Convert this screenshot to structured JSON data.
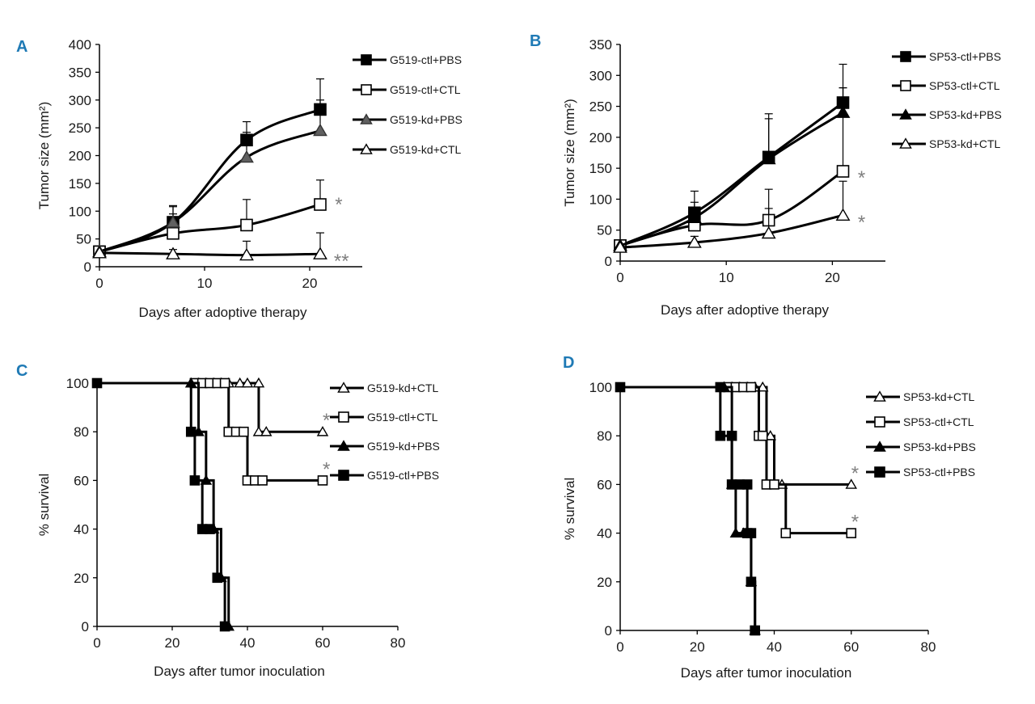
{
  "figure": {
    "panels": [
      "A",
      "B",
      "C",
      "D"
    ]
  },
  "chart_data": [
    {
      "id": "A",
      "panel_label": "A",
      "type": "line",
      "xlabel": "Days after adoptive therapy",
      "ylabel": "Tumor size (mm²)",
      "xlim": [
        0,
        25
      ],
      "ylim": [
        0,
        400
      ],
      "xticks": [
        0,
        10,
        20
      ],
      "yticks": [
        0,
        50,
        100,
        150,
        200,
        250,
        300,
        350,
        400
      ],
      "legend_position": "top-right",
      "series": [
        {
          "name": "G519-ctl+PBS",
          "marker": "square-filled",
          "color": "#000000",
          "x": [
            0,
            7,
            14,
            21
          ],
          "values": [
            27,
            80,
            228,
            283
          ],
          "error": [
            0,
            30,
            33,
            55
          ]
        },
        {
          "name": "G519-ctl+CTL",
          "marker": "square-open",
          "color": "#000000",
          "x": [
            0,
            7,
            14,
            21
          ],
          "values": [
            27,
            60,
            75,
            112
          ],
          "error": [
            0,
            35,
            46,
            44
          ]
        },
        {
          "name": "G519-kd+PBS",
          "marker": "triangle-gray",
          "color": "#555555",
          "x": [
            0,
            7,
            14,
            21
          ],
          "values": [
            27,
            80,
            197,
            245
          ],
          "error": [
            0,
            28,
            45,
            55
          ]
        },
        {
          "name": "G519-kd+CTL",
          "marker": "triangle-open",
          "color": "#000000",
          "x": [
            0,
            7,
            14,
            21
          ],
          "values": [
            25,
            23,
            21,
            23
          ],
          "error": [
            0,
            8,
            25,
            38
          ]
        }
      ],
      "annotations": [
        {
          "text": "*",
          "x": 22.4,
          "y": 118
        },
        {
          "text": "**",
          "x": 22.3,
          "y": 16
        }
      ]
    },
    {
      "id": "B",
      "panel_label": "B",
      "type": "line",
      "xlabel": "Days after adoptive therapy",
      "ylabel": "Tumor size (mm²)",
      "xlim": [
        0,
        25
      ],
      "ylim": [
        0,
        350
      ],
      "xticks": [
        0,
        10,
        20
      ],
      "yticks": [
        0,
        50,
        100,
        150,
        200,
        250,
        300,
        350
      ],
      "legend_position": "top-right",
      "series": [
        {
          "name": "SP53-ctl+PBS",
          "marker": "square-filled",
          "color": "#000000",
          "x": [
            0,
            7,
            14,
            21
          ],
          "values": [
            25,
            78,
            168,
            256
          ],
          "error": [
            0,
            35,
            70,
            62
          ]
        },
        {
          "name": "SP53-ctl+CTL",
          "marker": "square-open",
          "color": "#000000",
          "x": [
            0,
            7,
            14,
            21
          ],
          "values": [
            25,
            58,
            66,
            145
          ],
          "error": [
            0,
            20,
            50,
            135
          ]
        },
        {
          "name": "SP53-kd+PBS",
          "marker": "triangle-filled",
          "color": "#000000",
          "x": [
            0,
            7,
            14,
            21
          ],
          "values": [
            25,
            70,
            165,
            240
          ],
          "error": [
            0,
            25,
            65,
            40
          ]
        },
        {
          "name": "SP53-kd+CTL",
          "marker": "triangle-open",
          "color": "#000000",
          "x": [
            0,
            7,
            14,
            21
          ],
          "values": [
            22,
            30,
            45,
            74
          ],
          "error": [
            0,
            10,
            40,
            55
          ]
        }
      ],
      "annotations": [
        {
          "text": "*",
          "x": 22.4,
          "y": 140
        },
        {
          "text": "*",
          "x": 22.4,
          "y": 68
        }
      ]
    },
    {
      "id": "C",
      "panel_label": "C",
      "type": "line",
      "step": true,
      "xlabel": "Days after tumor inoculation",
      "ylabel": "% survival",
      "xlim": [
        0,
        80
      ],
      "ylim": [
        0,
        100
      ],
      "xticks": [
        0,
        20,
        40,
        60,
        80
      ],
      "yticks": [
        0,
        20,
        40,
        60,
        80,
        100
      ],
      "legend_position": "top-right",
      "series": [
        {
          "name": "G519-kd+CTL",
          "marker": "triangle-open",
          "x": [
            0,
            43,
            60
          ],
          "values": [
            100,
            80,
            80
          ],
          "markers": [
            [
              25,
              100
            ],
            [
              27,
              100
            ],
            [
              29,
              100
            ],
            [
              31,
              100
            ],
            [
              33,
              100
            ],
            [
              35,
              100
            ],
            [
              38,
              100
            ],
            [
              40,
              100
            ],
            [
              43,
              100
            ],
            [
              43,
              80
            ],
            [
              45,
              80
            ],
            [
              60,
              80
            ]
          ]
        },
        {
          "name": "G519-ctl+CTL",
          "marker": "square-open",
          "x": [
            0,
            35,
            40,
            60
          ],
          "values": [
            100,
            80,
            60,
            60
          ],
          "markers": [
            [
              26,
              100
            ],
            [
              28,
              100
            ],
            [
              30,
              100
            ],
            [
              32,
              100
            ],
            [
              34,
              100
            ],
            [
              35,
              80
            ],
            [
              37,
              80
            ],
            [
              39,
              80
            ],
            [
              40,
              60
            ],
            [
              42,
              60
            ],
            [
              44,
              60
            ],
            [
              60,
              60
            ]
          ]
        },
        {
          "name": "G519-kd+PBS",
          "marker": "triangle-filled",
          "x": [
            0,
            27,
            29,
            31,
            33,
            35
          ],
          "values": [
            100,
            80,
            60,
            40,
            20,
            0
          ],
          "markers": [
            [
              25,
              100
            ],
            [
              27,
              80
            ],
            [
              29,
              60
            ],
            [
              31,
              40
            ],
            [
              33,
              20
            ],
            [
              35,
              0
            ]
          ]
        },
        {
          "name": "G519-ctl+PBS",
          "marker": "square-filled",
          "x": [
            0,
            25,
            26,
            28,
            30,
            32,
            34
          ],
          "values": [
            100,
            80,
            60,
            40,
            40,
            20,
            0
          ],
          "markers": [
            [
              0,
              100
            ],
            [
              25,
              80
            ],
            [
              26,
              60
            ],
            [
              28,
              40
            ],
            [
              30,
              40
            ],
            [
              32,
              20
            ],
            [
              34,
              0
            ]
          ]
        }
      ],
      "annotations": [
        {
          "text": "*",
          "x": 60,
          "y": 86
        },
        {
          "text": "*",
          "x": 60,
          "y": 66
        }
      ]
    },
    {
      "id": "D",
      "panel_label": "D",
      "type": "line",
      "step": true,
      "xlabel": "Days after tumor inoculation",
      "ylabel": "% survival",
      "xlim": [
        0,
        80
      ],
      "ylim": [
        0,
        100
      ],
      "xticks": [
        0,
        20,
        40,
        60,
        80
      ],
      "yticks": [
        0,
        20,
        40,
        60,
        80,
        100
      ],
      "legend_position": "top-right",
      "series": [
        {
          "name": "SP53-kd+CTL",
          "marker": "triangle-open",
          "x": [
            0,
            38,
            40,
            60
          ],
          "values": [
            100,
            80,
            60,
            60
          ],
          "markers": [
            [
              27,
              100
            ],
            [
              29,
              100
            ],
            [
              31,
              100
            ],
            [
              33,
              100
            ],
            [
              35,
              100
            ],
            [
              37,
              100
            ],
            [
              38,
              80
            ],
            [
              39,
              80
            ],
            [
              40,
              60
            ],
            [
              42,
              60
            ],
            [
              60,
              60
            ]
          ]
        },
        {
          "name": "SP53-ctl+CTL",
          "marker": "square-open",
          "x": [
            0,
            36,
            38,
            43,
            60
          ],
          "values": [
            100,
            80,
            60,
            40,
            40
          ],
          "markers": [
            [
              28,
              100
            ],
            [
              30,
              100
            ],
            [
              32,
              100
            ],
            [
              34,
              100
            ],
            [
              36,
              80
            ],
            [
              37,
              80
            ],
            [
              38,
              60
            ],
            [
              40,
              60
            ],
            [
              43,
              40
            ],
            [
              60,
              40
            ]
          ]
        },
        {
          "name": "SP53-kd+PBS",
          "marker": "triangle-filled",
          "x": [
            0,
            29,
            30,
            32,
            34,
            35
          ],
          "values": [
            100,
            60,
            40,
            40,
            20,
            0
          ],
          "markers": [
            [
              27,
              100
            ],
            [
              29,
              60
            ],
            [
              30,
              40
            ],
            [
              32,
              40
            ],
            [
              34,
              20
            ],
            [
              35,
              0
            ]
          ]
        },
        {
          "name": "SP53-ctl+PBS",
          "marker": "square-filled",
          "x": [
            0,
            26,
            29,
            31,
            33,
            34,
            35
          ],
          "values": [
            100,
            80,
            60,
            60,
            40,
            20,
            0
          ],
          "markers": [
            [
              0,
              100
            ],
            [
              26,
              100
            ],
            [
              26,
              80
            ],
            [
              29,
              80
            ],
            [
              29,
              60
            ],
            [
              31,
              60
            ],
            [
              33,
              60
            ],
            [
              33,
              40
            ],
            [
              34,
              40
            ],
            [
              34,
              20
            ],
            [
              35,
              0
            ]
          ]
        }
      ],
      "annotations": [
        {
          "text": "*",
          "x": 60,
          "y": 66
        },
        {
          "text": "*",
          "x": 60,
          "y": 46
        }
      ]
    }
  ]
}
